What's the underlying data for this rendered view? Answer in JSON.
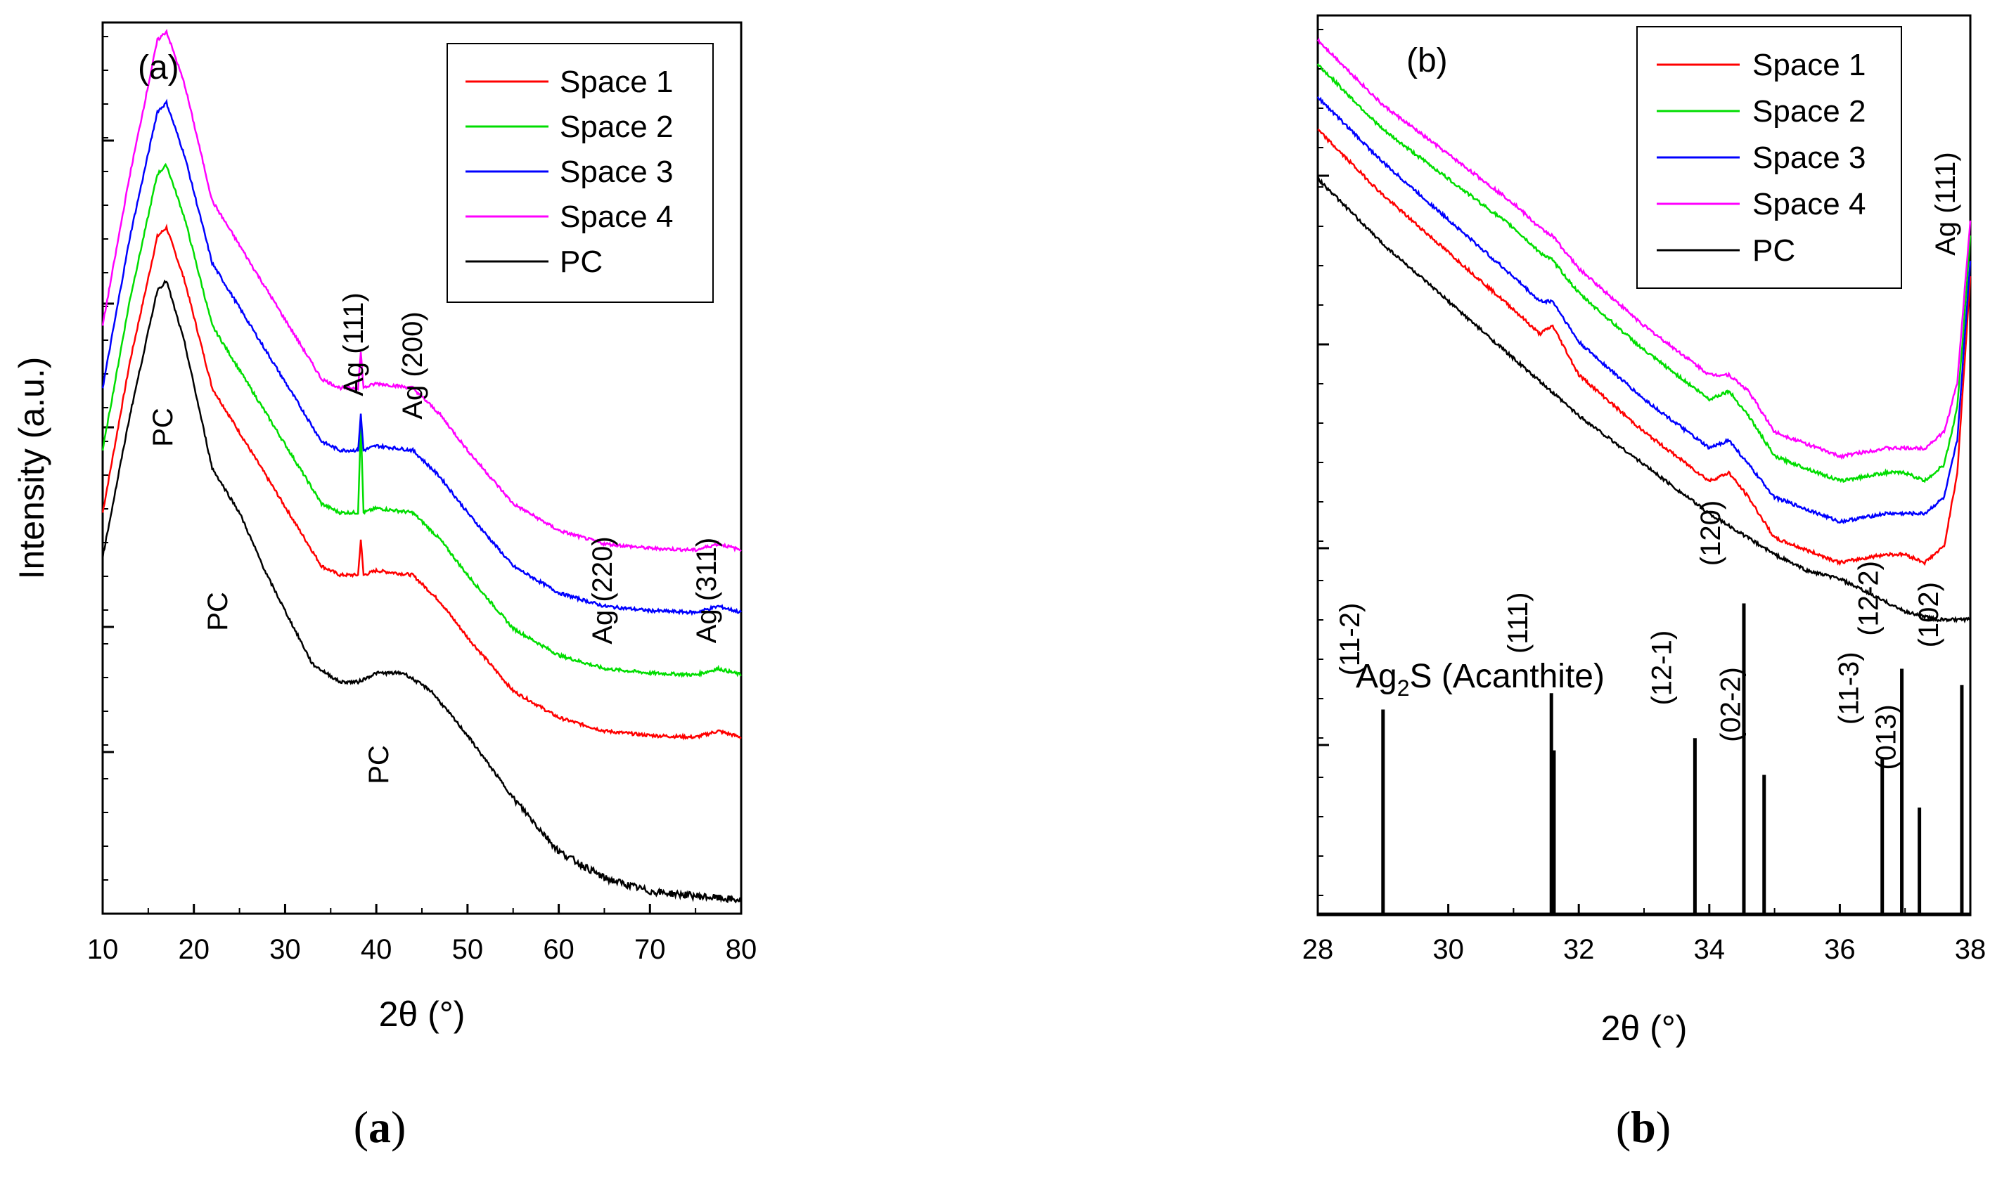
{
  "chart_data": [
    {
      "type": "line",
      "panel_label": "(a)",
      "caption": "(a)",
      "xlabel": "2θ (°)",
      "ylabel": "Intensity (a.u.)",
      "xlim": [
        10,
        80
      ],
      "ylim": [
        0,
        100
      ],
      "xticks": [
        10,
        20,
        30,
        40,
        50,
        60,
        70,
        80
      ],
      "series": [
        {
          "name": "Space 1",
          "color": "#ff0000",
          "x": [
            10,
            13,
            16,
            17,
            19,
            22,
            25,
            28,
            31,
            34,
            36,
            38,
            38.3,
            38.6,
            40,
            44,
            47,
            50,
            55,
            60,
            65,
            70,
            75,
            77.5,
            80
          ],
          "y": [
            45,
            62,
            76,
            77,
            71,
            59,
            54,
            49,
            44,
            39,
            38,
            38,
            42,
            38,
            38.5,
            38,
            35,
            31,
            25,
            22,
            20.5,
            20,
            19.8,
            20.5,
            19.8
          ]
        },
        {
          "name": "Space 2",
          "color": "#00dd00",
          "x": [
            10,
            13,
            16,
            17,
            19,
            22,
            25,
            28,
            31,
            34,
            36,
            38,
            38.3,
            38.6,
            40,
            44,
            47,
            50,
            55,
            60,
            65,
            70,
            75,
            77.5,
            80
          ],
          "y": [
            52,
            69,
            83,
            84,
            78,
            66,
            61,
            56,
            51,
            46,
            45,
            45,
            55,
            45,
            45.5,
            45,
            42,
            38,
            32,
            29,
            27.5,
            27,
            26.8,
            27.5,
            26.8
          ]
        },
        {
          "name": "Space 3",
          "color": "#0000ff",
          "x": [
            10,
            13,
            16,
            17,
            19,
            22,
            25,
            28,
            31,
            34,
            36,
            38,
            38.3,
            38.6,
            40,
            44,
            47,
            50,
            55,
            60,
            65,
            70,
            75,
            77.5,
            80
          ],
          "y": [
            59,
            76,
            90,
            91,
            85,
            73,
            68,
            63,
            58,
            53,
            52,
            52,
            56,
            52,
            52.5,
            52,
            49,
            45,
            39,
            36,
            34.5,
            34,
            33.8,
            34.5,
            33.8
          ]
        },
        {
          "name": "Space 4",
          "color": "#ff00ff",
          "x": [
            10,
            13,
            16,
            17,
            19,
            22,
            25,
            28,
            31,
            34,
            36,
            38,
            38.3,
            38.6,
            40,
            44,
            47,
            50,
            55,
            60,
            65,
            70,
            75,
            77.5,
            80
          ],
          "y": [
            66,
            83,
            98,
            99,
            93,
            80,
            75,
            70,
            65,
            60,
            59,
            59,
            63,
            59,
            59.5,
            59,
            56,
            52,
            46,
            43,
            41.5,
            41,
            40.8,
            41.5,
            40.8
          ]
        },
        {
          "name": "PC",
          "color": "#000000",
          "x": [
            10,
            13,
            16,
            17,
            19,
            22,
            25,
            28,
            30,
            33,
            36,
            38,
            40,
            43,
            46,
            50,
            55,
            60,
            65,
            70,
            75,
            80
          ],
          "y": [
            40,
            56,
            70,
            71,
            64,
            50,
            45,
            38,
            34,
            28,
            26,
            26,
            27,
            27,
            25,
            20,
            13,
            7,
            4,
            2.5,
            2,
            1.5
          ]
        }
      ],
      "legend": {
        "location": "top-right",
        "entries": [
          "Space 1",
          "Space 2",
          "Space 3",
          "Space 4",
          "PC"
        ]
      },
      "annotations": [
        {
          "text": "PC",
          "x": 17,
          "y": 62
        },
        {
          "text": "PC",
          "x": 24,
          "y": 42
        },
        {
          "text": "PC",
          "x": 42,
          "y": 20
        },
        {
          "text": "Ag (111)",
          "x": 38,
          "y": 73
        },
        {
          "text": "Ag (200)",
          "x": 44,
          "y": 69
        },
        {
          "text": "Ag (220)",
          "x": 65,
          "y": 46
        },
        {
          "text": "Ag (311)",
          "x": 77.5,
          "y": 46
        }
      ]
    },
    {
      "type": "line",
      "panel_label": "(b)",
      "caption": "(b)",
      "xlabel": "2θ (°)",
      "xlim": [
        28,
        38
      ],
      "ylim": [
        0,
        100
      ],
      "xticks": [
        28,
        30,
        32,
        34,
        36,
        38
      ],
      "series": [
        {
          "name": "Space 1",
          "color": "#ff0000",
          "x": [
            28,
            29,
            30,
            31,
            31.4,
            31.6,
            32,
            33,
            34,
            34.3,
            34.6,
            35,
            36,
            36.7,
            37,
            37.3,
            37.6,
            37.8,
            37.9,
            38
          ],
          "y": [
            90,
            82,
            75,
            68,
            65,
            66,
            60,
            53,
            47,
            48,
            45,
            40,
            37,
            38,
            38,
            37,
            39,
            48,
            60,
            72
          ]
        },
        {
          "name": "Space 2",
          "color": "#00dd00",
          "x": [
            28,
            29,
            30,
            31,
            31.4,
            31.6,
            32,
            33,
            34,
            34.3,
            34.6,
            35,
            36,
            36.7,
            37,
            37.3,
            37.6,
            37.8,
            37.9,
            38
          ],
          "y": [
            98,
            90,
            84,
            78,
            75,
            74,
            70,
            63,
            57,
            58,
            55,
            50,
            47,
            48,
            48,
            47,
            49,
            56,
            66,
            77
          ]
        },
        {
          "name": "Space 3",
          "color": "#0000ff",
          "x": [
            28,
            29,
            30,
            31,
            31.4,
            31.6,
            32,
            33,
            34,
            34.3,
            34.6,
            35,
            36,
            36.7,
            37,
            37.3,
            37.6,
            37.8,
            37.9,
            38
          ],
          "y": [
            94,
            86,
            79,
            72,
            69,
            69,
            64,
            57,
            51,
            52,
            49,
            45,
            42,
            43,
            43,
            43,
            45,
            52,
            63,
            74
          ]
        },
        {
          "name": "Space 4",
          "color": "#ff00ff",
          "x": [
            28,
            29,
            30,
            31,
            31.4,
            31.6,
            32,
            33,
            34,
            34.3,
            34.6,
            35,
            36,
            36.7,
            37,
            37.3,
            37.6,
            37.8,
            37.9,
            38
          ],
          "y": [
            101,
            93,
            87,
            81,
            78,
            77,
            73,
            66,
            60,
            60,
            58,
            53,
            50,
            51,
            51,
            51,
            53,
            59,
            69,
            79
          ]
        },
        {
          "name": "PC",
          "color": "#000000",
          "x": [
            28,
            29,
            30,
            31,
            32,
            33,
            34,
            35,
            35.5,
            36,
            36.5,
            37,
            37.5,
            38
          ],
          "y": [
            84,
            76,
            69,
            62,
            55,
            49,
            43,
            38,
            36,
            35,
            33,
            31,
            30,
            30
          ]
        }
      ],
      "legend": {
        "location": "top-right",
        "entries": [
          "Space 1",
          "Space 2",
          "Space 3",
          "Space 4",
          "PC"
        ]
      },
      "reference": {
        "label": "Ag₂S (Acanthite)",
        "peaks": [
          {
            "label": "(11-2)",
            "x": 29.0,
            "height": 19
          },
          {
            "label": "(111)",
            "x": 31.58,
            "height": 21
          },
          {
            "label": "(111)",
            "x": 31.62,
            "height": 14
          },
          {
            "label": "(12-1)",
            "x": 33.78,
            "height": 15.5
          },
          {
            "label": "(120)",
            "x": 34.53,
            "height": 32
          },
          {
            "label": "(02-2)",
            "x": 34.84,
            "height": 11
          },
          {
            "label": "(11-3)",
            "x": 36.65,
            "height": 13
          },
          {
            "label": "(12-2)",
            "x": 36.95,
            "height": 24
          },
          {
            "label": "(013)",
            "x": 37.22,
            "height": 7
          },
          {
            "label": "(102)",
            "x": 37.87,
            "height": 22
          }
        ]
      },
      "annotations": [
        {
          "text": "Ag (111)",
          "x": 37.7,
          "y": 88
        }
      ]
    }
  ]
}
